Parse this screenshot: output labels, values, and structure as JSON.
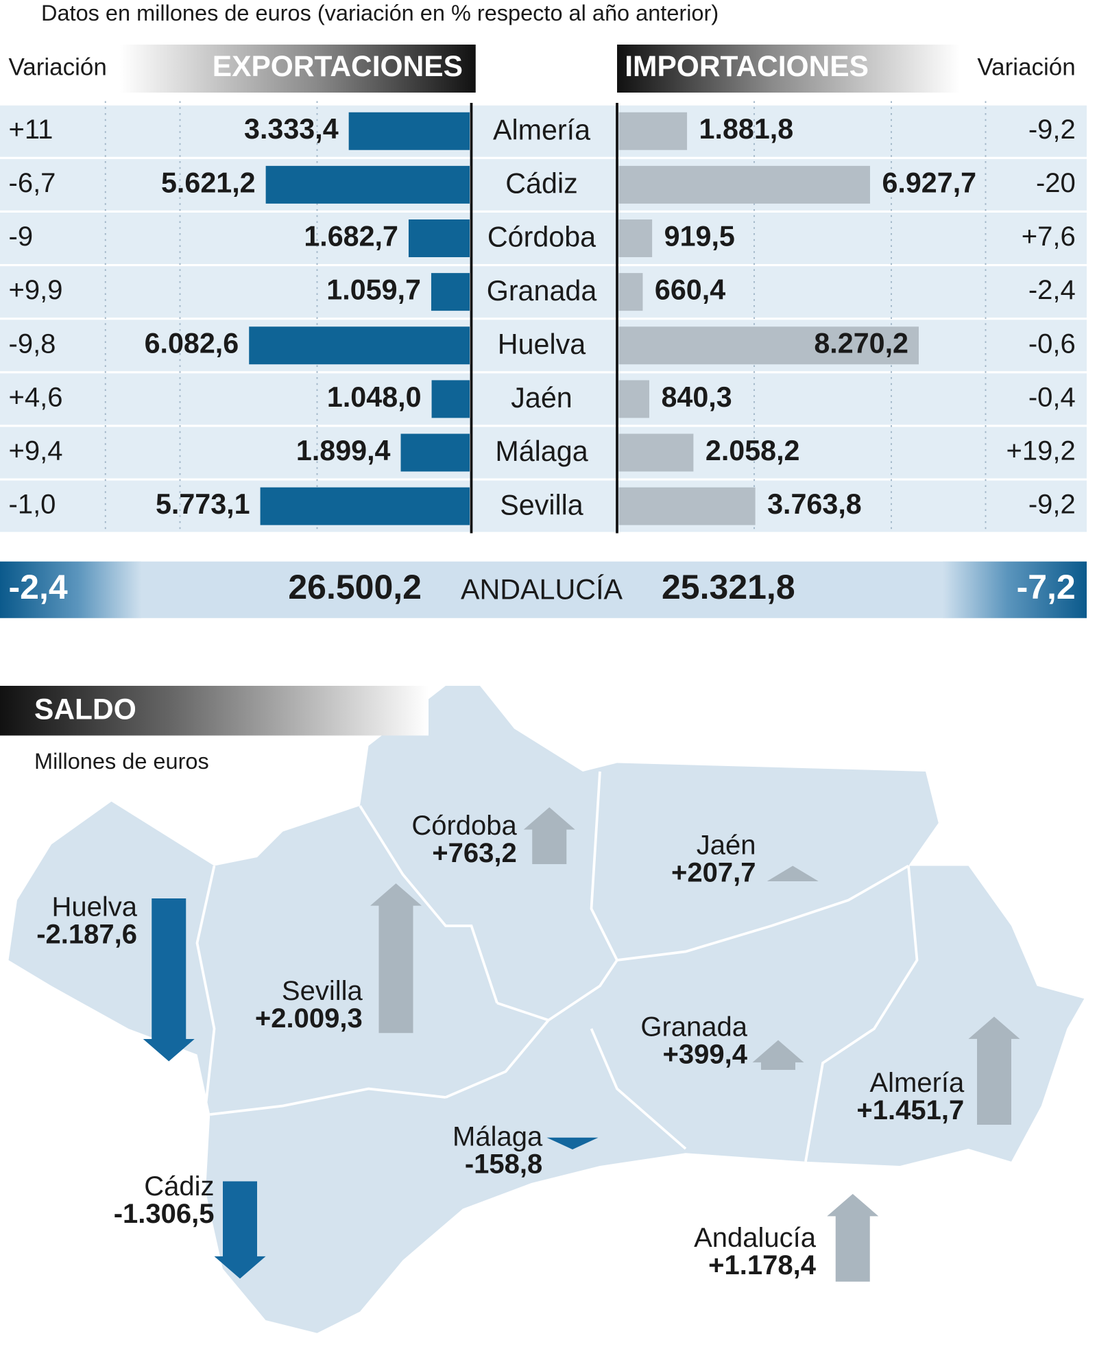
{
  "subtitle": "Datos en millones de euros (variación en % respecto al año anterior)",
  "chart_data": [
    {
      "type": "bar",
      "title": "EXPORTACIONES",
      "variation_heading": "Variación",
      "categories": [
        "Almería",
        "Cádiz",
        "Córdoba",
        "Granada",
        "Huelva",
        "Jaén",
        "Málaga",
        "Sevilla"
      ],
      "values": [
        3333.4,
        5621.2,
        1682.7,
        1059.7,
        6082.6,
        1048.0,
        1899.4,
        5773.1
      ],
      "value_labels": [
        "3.333,4",
        "5.621,2",
        "1.682,7",
        "1.059,7",
        "6.082,6",
        "1.048,0",
        "1.899,4",
        "5.773,1"
      ],
      "variation": [
        "+11",
        "-6,7",
        "-9",
        "+9,9",
        "-9,8",
        "+4,6",
        "+9,4",
        "-1,0"
      ],
      "color": "#0f6496",
      "total_category": "ANDALUCÍA",
      "total": "26.500,2",
      "total_variation": "-2,4"
    },
    {
      "type": "bar",
      "title": "IMPORTACIONES",
      "variation_heading": "Variación",
      "values": [
        1881.8,
        6927.7,
        919.5,
        660.4,
        8270.2,
        840.3,
        2058.2,
        3763.8
      ],
      "value_labels": [
        "1.881,8",
        "6.927,7",
        "919,5",
        "660,4",
        "8.270,2",
        "840,3",
        "2.058,2",
        "3.763,8"
      ],
      "variation": [
        "-9,2",
        "-20",
        "+7,6",
        "-2,4",
        "-0,6",
        "-0,4",
        "+19,2",
        "-9,2"
      ],
      "color": "#b4bec6",
      "total": "25.321,8",
      "total_variation": "-7,2"
    },
    {
      "type": "arrow-map",
      "title": "SALDO",
      "subtitle": "Millones de euros",
      "categories": [
        "Huelva",
        "Sevilla",
        "Córdoba",
        "Jaén",
        "Granada",
        "Almería",
        "Málaga",
        "Cádiz",
        "Andalucía"
      ],
      "values": [
        -2187.6,
        2009.3,
        763.2,
        207.7,
        399.4,
        1451.7,
        -158.8,
        -1306.5,
        1178.4
      ],
      "value_labels": [
        "-2.187,6",
        "+2.009,3",
        "+763,2",
        "+207,7",
        "+399,4",
        "+1.451,7",
        "-158,8",
        "-1.306,5",
        "+1.178,4"
      ],
      "colors": {
        "positive": "#aab6bf",
        "negative": "#13679e"
      }
    }
  ]
}
